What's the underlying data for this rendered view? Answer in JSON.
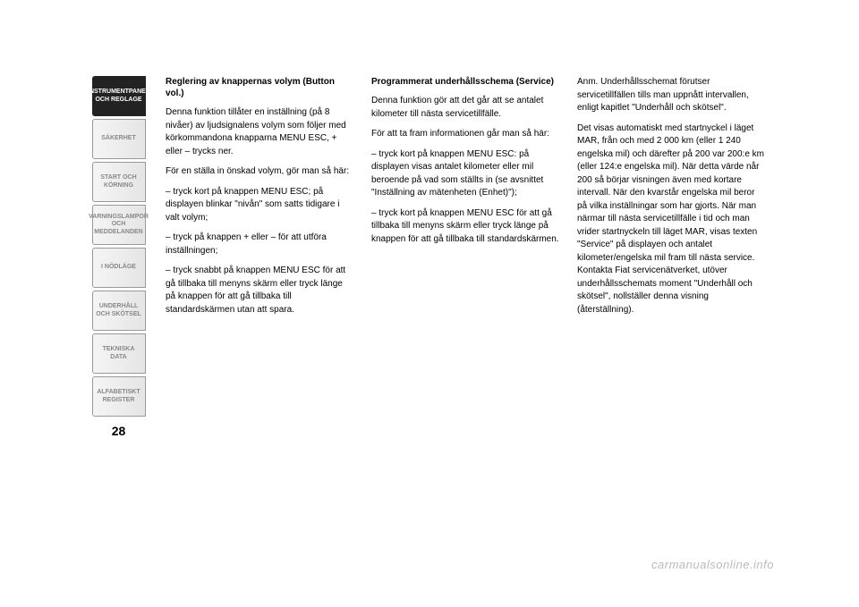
{
  "sidebar": {
    "tabs": [
      {
        "label": "INSTRUMENTPANEL OCH REGLAGE",
        "active": true
      },
      {
        "label": "SÄKERHET",
        "active": false
      },
      {
        "label": "START OCH KÖRNING",
        "active": false
      },
      {
        "label": "VARNINGSLAMPOR OCH MEDDELANDEN",
        "active": false
      },
      {
        "label": "I NÖDLÄGE",
        "active": false
      },
      {
        "label": "UNDERHÅLL OCH SKÖTSEL",
        "active": false
      },
      {
        "label": "TEKNISKA DATA",
        "active": false
      },
      {
        "label": "ALFABETISKT REGISTER",
        "active": false
      }
    ],
    "page_number": "28"
  },
  "columns": [
    {
      "title": "Reglering av knappernas volym (Button vol.)",
      "paras": [
        "Denna funktion tillåter en inställning (på 8 nivåer) av ljudsignalens volym som följer med körkommandona knapparna MENU ESC, + eller – trycks ner.",
        "För en ställa in önskad volym, gör man så här:",
        "– tryck kort på knappen MENU ESC; på displayen blinkar \"nivån\" som satts tidigare i valt volym;",
        "– tryck på knappen + eller – för att utföra inställningen;",
        "– tryck snabbt på knappen MENU ESC för att gå tillbaka till menyns skärm eller tryck länge på knappen för att gå tillbaka till standardskärmen utan att spara."
      ]
    },
    {
      "title": "Programmerat underhållsschema (Service)",
      "paras": [
        "Denna funktion gör att det går att se antalet kilometer till nästa servicetillfälle.",
        "För att ta fram informationen går man så här:",
        "– tryck kort på knappen MENU ESC: på displayen visas antalet kilometer eller mil beroende på vad som ställts in (se avsnittet \"Inställning av mätenheten (Enhet)\");",
        "– tryck kort på knappen MENU ESC för att gå tillbaka till menyns skärm eller tryck länge på knappen för att gå tillbaka till standardskärmen."
      ]
    },
    {
      "title": "",
      "paras": [
        "Anm. Underhållsschemat förutser servicetillfällen tills man uppnått intervallen, enligt kapitlet \"Underhåll och skötsel\".",
        "Det visas automatiskt med startnyckel i läget MAR, från och med 2 000 km (eller 1 240 engelska mil) och därefter på 200 var 200:e km (eller 124:e engelska mil). När detta värde når 200 så börjar visningen även med kortare intervall. När den kvarstår engelska mil beror på vilka inställningar som har gjorts. När man närmar till nästa servicetillfälle i tid och man vrider startnyckeln till läget MAR, visas texten \"Service\" på displayen och antalet kilometer/engelska mil fram till nästa service. Kontakta Fiat servicenätverket, utöver underhållsschemats moment \"Underhåll och skötsel\", nollställer denna visning (återställning)."
      ]
    }
  ],
  "watermark": "carmanualsonline.info",
  "styling": {
    "page_bg": "#ffffff",
    "text_color": "#000000",
    "tab_active_bg": "#222222",
    "tab_active_fg": "#ffffff",
    "tab_inactive_fg": "#888888",
    "watermark_color": "#bbbbbb",
    "body_font_size": 10,
    "tab_font_size": 7
  }
}
